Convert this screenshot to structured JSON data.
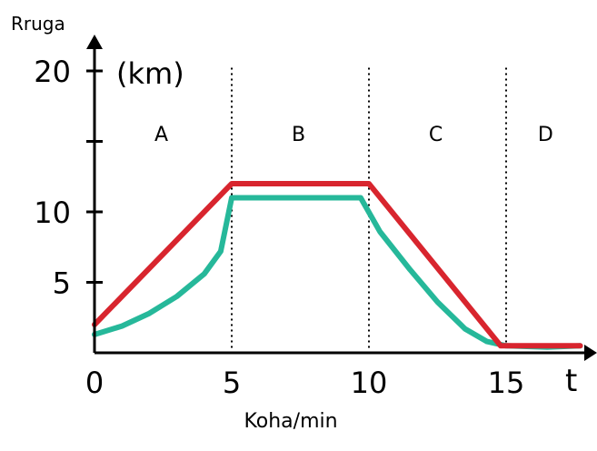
{
  "chart_data": {
    "type": "line",
    "y_axis_name": "Rruga",
    "y_unit": "(km)",
    "x_axis_name": "t",
    "xlabel": "Koha/min",
    "x_ticks": [
      {
        "value": 0,
        "label": "0"
      },
      {
        "value": 5,
        "label": "5"
      },
      {
        "value": 10,
        "label": "10"
      },
      {
        "value": 15,
        "label": "15"
      }
    ],
    "y_ticks": [
      {
        "value": 5,
        "label": "5"
      },
      {
        "value": 10,
        "label": "10"
      },
      {
        "value": 15,
        "label": ""
      },
      {
        "value": 20,
        "label": "20"
      }
    ],
    "xlim": [
      0,
      18
    ],
    "ylim": [
      0,
      21
    ],
    "regions": [
      {
        "label": "A",
        "from": 0,
        "to": 5
      },
      {
        "label": "B",
        "from": 5,
        "to": 10
      },
      {
        "label": "C",
        "from": 10,
        "to": 15
      },
      {
        "label": "D",
        "from": 15,
        "to": 18
      }
    ],
    "dividers_x": [
      5,
      10,
      15
    ],
    "series": [
      {
        "color": "#d8252e",
        "points": [
          [
            0,
            2.0
          ],
          [
            5,
            12.0
          ],
          [
            10,
            12.0
          ],
          [
            14.8,
            0.5
          ],
          [
            17.7,
            0.5
          ]
        ]
      },
      {
        "color": "#26b89a",
        "points": [
          [
            0,
            1.3
          ],
          [
            1,
            1.9
          ],
          [
            2,
            2.8
          ],
          [
            3,
            4.0
          ],
          [
            4,
            5.6
          ],
          [
            4.6,
            7.2
          ],
          [
            5,
            11.0
          ],
          [
            9.7,
            11.0
          ],
          [
            10.4,
            8.6
          ],
          [
            11.5,
            5.9
          ],
          [
            12.5,
            3.6
          ],
          [
            13.5,
            1.7
          ],
          [
            14.3,
            0.8
          ],
          [
            15,
            0.5
          ],
          [
            16.5,
            0.4
          ],
          [
            17.7,
            0.5
          ]
        ]
      }
    ]
  }
}
